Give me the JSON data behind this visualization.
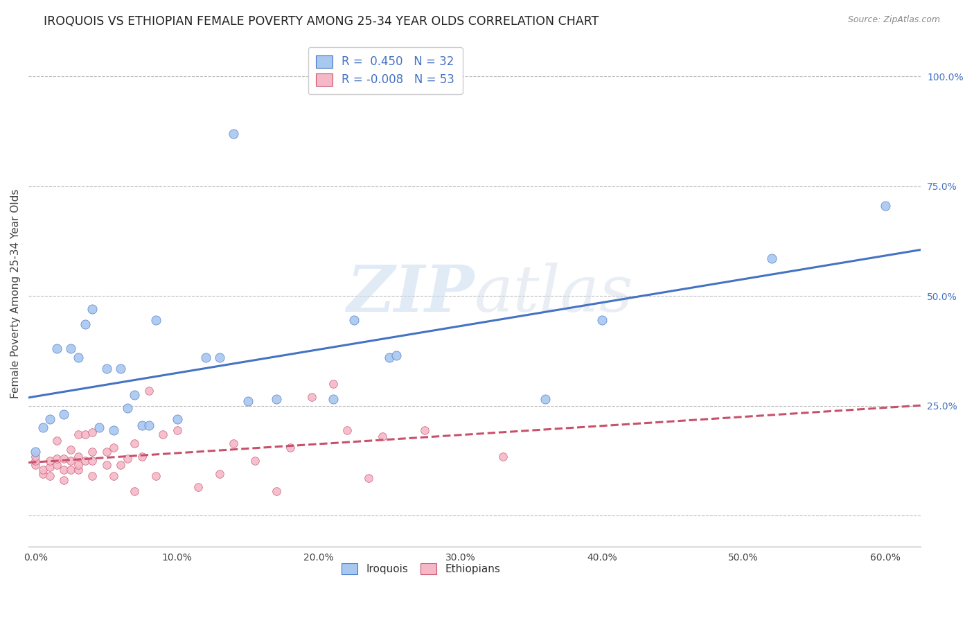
{
  "title": "IROQUOIS VS ETHIOPIAN FEMALE POVERTY AMONG 25-34 YEAR OLDS CORRELATION CHART",
  "source": "Source: ZipAtlas.com",
  "xlabel_ticks": [
    "0.0%",
    "10.0%",
    "20.0%",
    "30.0%",
    "40.0%",
    "50.0%",
    "60.0%"
  ],
  "xlabel_vals": [
    0.0,
    0.1,
    0.2,
    0.3,
    0.4,
    0.5,
    0.6
  ],
  "ylabel": "Female Poverty Among 25-34 Year Olds",
  "ytick_vals": [
    0.0,
    0.25,
    0.5,
    0.75,
    1.0
  ],
  "ytick_labels": [
    "",
    "25.0%",
    "50.0%",
    "75.0%",
    "100.0%"
  ],
  "xlim": [
    -0.005,
    0.625
  ],
  "ylim": [
    -0.07,
    1.08
  ],
  "R_iroquois": 0.45,
  "N_iroquois": 32,
  "R_ethiopians": -0.008,
  "N_ethiopians": 53,
  "iroquois_color": "#A8C8F0",
  "ethiopians_color": "#F4B8C8",
  "iroquois_line_color": "#4472C4",
  "ethiopians_line_color": "#C8506A",
  "watermark_zip": "ZIP",
  "watermark_atlas": "atlas",
  "iroquois_x": [
    0.0,
    0.005,
    0.01,
    0.015,
    0.02,
    0.025,
    0.03,
    0.035,
    0.04,
    0.045,
    0.05,
    0.055,
    0.06,
    0.065,
    0.07,
    0.075,
    0.08,
    0.085,
    0.1,
    0.12,
    0.13,
    0.14,
    0.15,
    0.17,
    0.21,
    0.225,
    0.25,
    0.255,
    0.36,
    0.4,
    0.52,
    0.6
  ],
  "iroquois_y": [
    0.145,
    0.2,
    0.22,
    0.38,
    0.23,
    0.38,
    0.36,
    0.435,
    0.47,
    0.2,
    0.335,
    0.195,
    0.335,
    0.245,
    0.275,
    0.205,
    0.205,
    0.445,
    0.22,
    0.36,
    0.36,
    0.87,
    0.26,
    0.265,
    0.265,
    0.445,
    0.36,
    0.365,
    0.265,
    0.445,
    0.585,
    0.705
  ],
  "ethiopians_x": [
    0.0,
    0.0,
    0.0,
    0.005,
    0.005,
    0.01,
    0.01,
    0.01,
    0.015,
    0.015,
    0.015,
    0.02,
    0.02,
    0.02,
    0.025,
    0.025,
    0.025,
    0.03,
    0.03,
    0.03,
    0.03,
    0.035,
    0.035,
    0.04,
    0.04,
    0.04,
    0.04,
    0.05,
    0.05,
    0.055,
    0.055,
    0.06,
    0.065,
    0.07,
    0.07,
    0.075,
    0.08,
    0.085,
    0.09,
    0.1,
    0.115,
    0.13,
    0.14,
    0.155,
    0.17,
    0.18,
    0.195,
    0.21,
    0.22,
    0.235,
    0.245,
    0.275,
    0.33
  ],
  "ethiopians_y": [
    0.115,
    0.125,
    0.135,
    0.095,
    0.105,
    0.09,
    0.11,
    0.125,
    0.115,
    0.13,
    0.17,
    0.08,
    0.105,
    0.13,
    0.105,
    0.125,
    0.15,
    0.105,
    0.115,
    0.135,
    0.185,
    0.125,
    0.185,
    0.09,
    0.125,
    0.145,
    0.19,
    0.115,
    0.145,
    0.09,
    0.155,
    0.115,
    0.13,
    0.055,
    0.165,
    0.135,
    0.285,
    0.09,
    0.185,
    0.195,
    0.065,
    0.095,
    0.165,
    0.125,
    0.055,
    0.155,
    0.27,
    0.3,
    0.195,
    0.085,
    0.18,
    0.195,
    0.135
  ],
  "background_color": "#FFFFFF",
  "grid_color": "#BBBBBB"
}
